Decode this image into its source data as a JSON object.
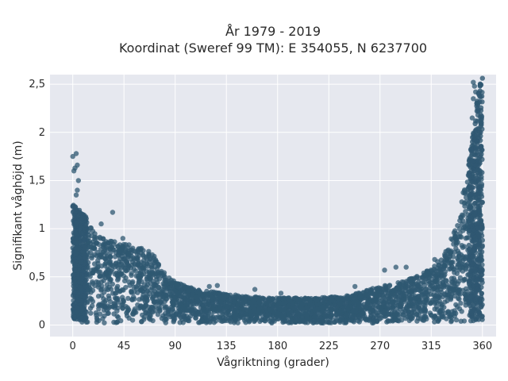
{
  "chart_data": {
    "type": "scatter",
    "title_line1": "År 1979 - 2019",
    "title_line2": "Koordinat (Sweref 99 TM): E 354055, N 6237700",
    "xlabel": "Vågriktning (grader)",
    "ylabel": "Signifikant våghöjd (m)",
    "xlim": [
      -20,
      372
    ],
    "ylim": [
      -0.12,
      2.6
    ],
    "x_ticks": [
      0,
      45,
      90,
      135,
      180,
      225,
      270,
      315,
      360
    ],
    "x_tick_labels": [
      "0",
      "45",
      "90",
      "135",
      "180",
      "225",
      "270",
      "315",
      "360"
    ],
    "y_ticks": [
      0,
      0.5,
      1,
      1.5,
      2,
      2.5
    ],
    "y_tick_labels": [
      "0",
      "0,5",
      "1",
      "1,5",
      "2",
      "2,5"
    ],
    "grid": true,
    "marker_color": "#2f5872",
    "background_color": "#e6e8ef",
    "x_range_data": [
      0,
      360
    ],
    "envelope_upper": [
      [
        0,
        1.2
      ],
      [
        10,
        1.1
      ],
      [
        20,
        0.95
      ],
      [
        30,
        0.9
      ],
      [
        45,
        0.85
      ],
      [
        60,
        0.8
      ],
      [
        70,
        0.75
      ],
      [
        80,
        0.55
      ],
      [
        90,
        0.45
      ],
      [
        100,
        0.4
      ],
      [
        120,
        0.35
      ],
      [
        150,
        0.3
      ],
      [
        180,
        0.28
      ],
      [
        210,
        0.28
      ],
      [
        240,
        0.3
      ],
      [
        270,
        0.4
      ],
      [
        290,
        0.45
      ],
      [
        310,
        0.55
      ],
      [
        320,
        0.65
      ],
      [
        330,
        0.8
      ],
      [
        340,
        1.2
      ],
      [
        345,
        1.5
      ],
      [
        350,
        1.8
      ],
      [
        355,
        2.3
      ],
      [
        358,
        2.5
      ],
      [
        360,
        2.55
      ]
    ],
    "outliers": [
      {
        "x": 0,
        "y": 1.75
      },
      {
        "x": 3,
        "y": 1.78
      },
      {
        "x": 2,
        "y": 1.63
      },
      {
        "x": 1,
        "y": 1.6
      },
      {
        "x": 4,
        "y": 1.66
      },
      {
        "x": 5,
        "y": 1.5
      },
      {
        "x": 4,
        "y": 1.4
      },
      {
        "x": 3,
        "y": 1.35
      },
      {
        "x": 35,
        "y": 1.17
      },
      {
        "x": 25,
        "y": 1.05
      },
      {
        "x": 44,
        "y": 0.9
      },
      {
        "x": 120,
        "y": 0.4
      },
      {
        "x": 127,
        "y": 0.41
      },
      {
        "x": 160,
        "y": 0.37
      },
      {
        "x": 183,
        "y": 0.33
      },
      {
        "x": 248,
        "y": 0.4
      },
      {
        "x": 274,
        "y": 0.57
      },
      {
        "x": 284,
        "y": 0.6
      },
      {
        "x": 293,
        "y": 0.6
      },
      {
        "x": 318,
        "y": 0.68
      },
      {
        "x": 340,
        "y": 1.0
      },
      {
        "x": 343,
        "y": 0.98
      },
      {
        "x": 352,
        "y": 2.52
      },
      {
        "x": 353,
        "y": 2.48
      },
      {
        "x": 354,
        "y": 2.42
      },
      {
        "x": 352,
        "y": 2.35
      },
      {
        "x": 355,
        "y": 2.3
      },
      {
        "x": 351,
        "y": 2.15
      },
      {
        "x": 356,
        "y": 2.18
      }
    ]
  }
}
